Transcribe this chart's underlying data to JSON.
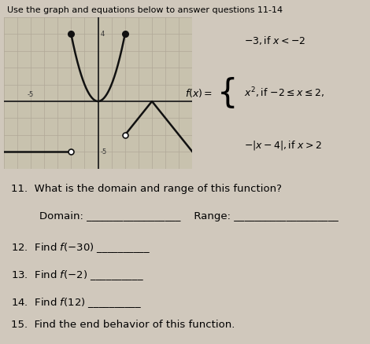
{
  "bg_color": "#d0c8bc",
  "title_text": "Use the graph and equations below to answer questions 11-14",
  "title_fontsize": 8.5,
  "graph": {
    "xlim": [
      -7,
      7
    ],
    "ylim": [
      -4,
      5
    ],
    "grid_color": "#b0a898",
    "axis_color": "#222222",
    "line_color": "#111111",
    "dot_color": "#111111",
    "facecolor": "#c8c2ae"
  },
  "font_sizes": {
    "questions": 9.5
  }
}
